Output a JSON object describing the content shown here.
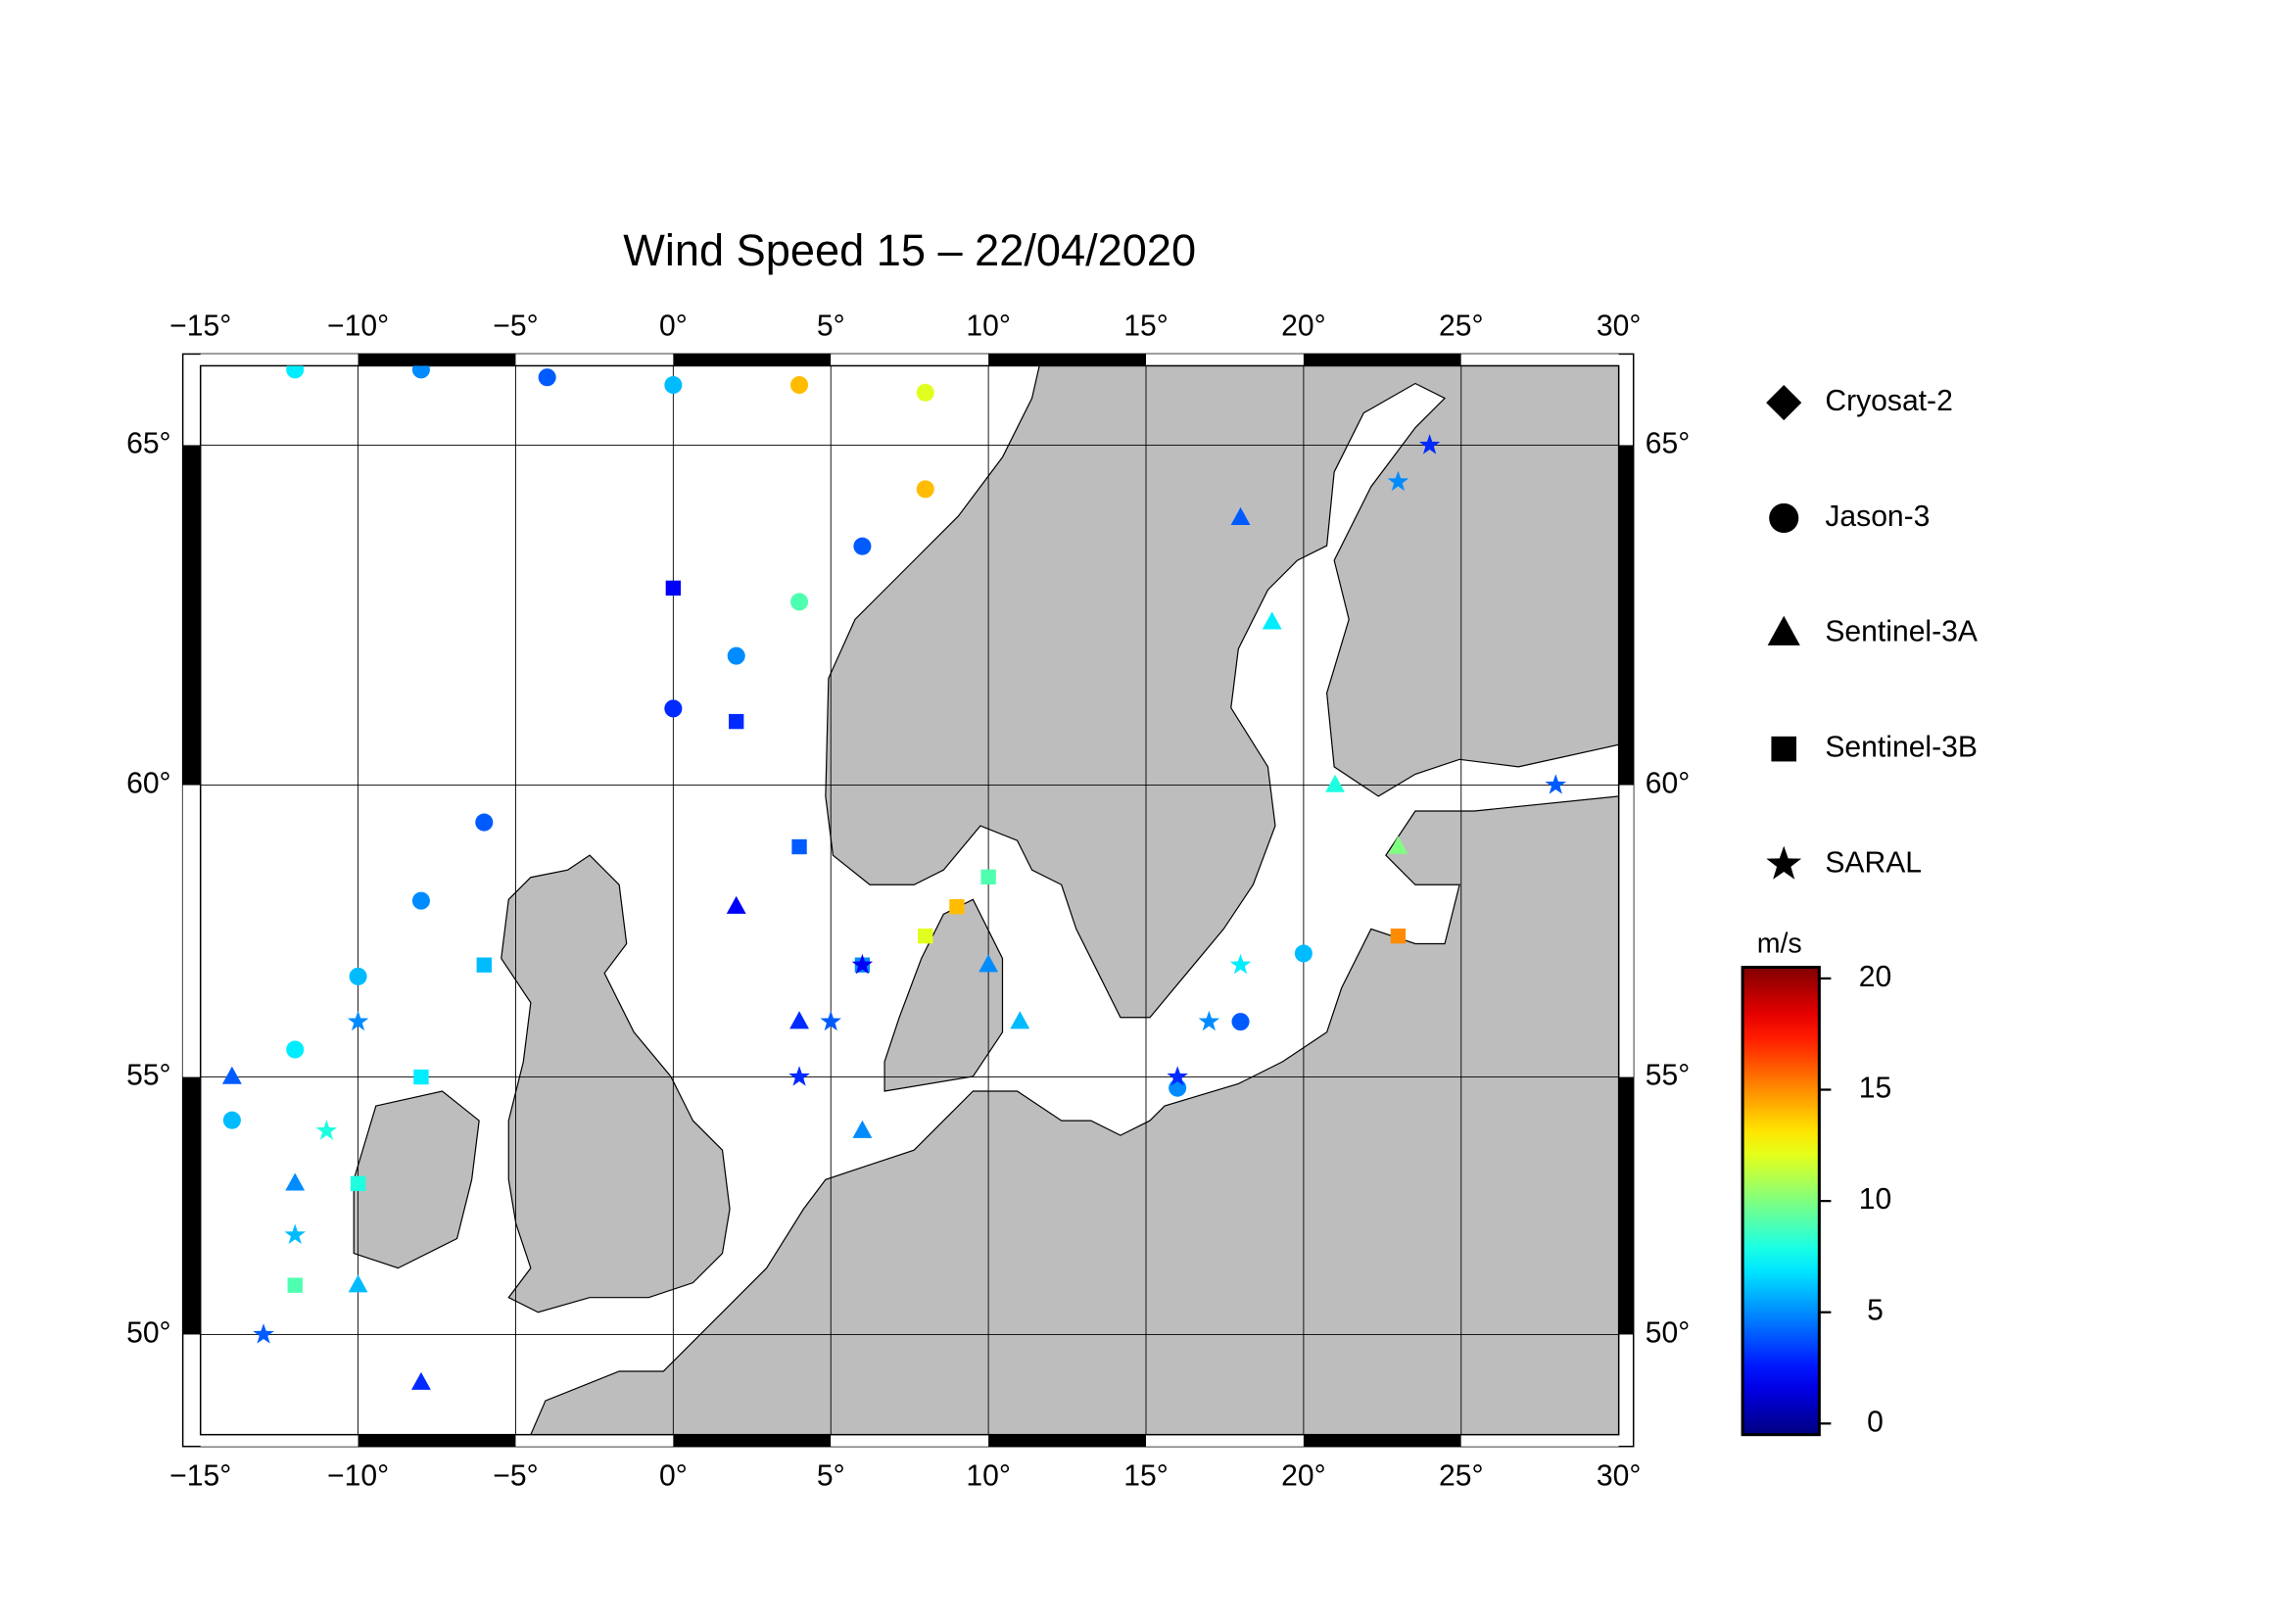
{
  "chart_data": {
    "type": "map",
    "title": "Wind Speed 15 – 22/04/2020",
    "projection": "mercator",
    "xlim": [
      -15,
      30
    ],
    "ylim": [
      47.9,
      66.05
    ],
    "xticks": [
      {
        "value": -15,
        "label": "−15°"
      },
      {
        "value": -10,
        "label": "−10°"
      },
      {
        "value": -5,
        "label": "−5°"
      },
      {
        "value": 0,
        "label": "0°"
      },
      {
        "value": 5,
        "label": "5°"
      },
      {
        "value": 10,
        "label": "10°"
      },
      {
        "value": 15,
        "label": "15°"
      },
      {
        "value": 20,
        "label": "20°"
      },
      {
        "value": 25,
        "label": "25°"
      },
      {
        "value": 30,
        "label": "30°"
      }
    ],
    "yticks": [
      {
        "value": 50,
        "label": "50°"
      },
      {
        "value": 55,
        "label": "55°"
      },
      {
        "value": 60,
        "label": "60°"
      },
      {
        "value": 65,
        "label": "65°"
      }
    ],
    "grid": true,
    "colormap": "jet",
    "colorbar": {
      "label": "m/s",
      "lim": [
        -0.5,
        20.5
      ],
      "ticks": [
        0,
        5,
        10,
        15,
        20
      ]
    },
    "series": [
      {
        "name": "Cryosat-2",
        "marker": "diamond",
        "x": [],
        "y": [],
        "values": []
      },
      {
        "name": "Jason-3",
        "marker": "circle",
        "x": [
          -14,
          -12,
          -10,
          -8,
          -6,
          0,
          2,
          4,
          6,
          8,
          -12,
          -8,
          -4,
          0,
          4,
          8,
          16,
          18,
          20
        ],
        "y": [
          54.2,
          55.5,
          56.8,
          58.1,
          59.4,
          61.2,
          62.0,
          62.8,
          63.6,
          64.4,
          66.0,
          66.0,
          65.9,
          65.8,
          65.8,
          65.7,
          54.8,
          56.0,
          57.2
        ],
        "values": [
          6,
          7,
          6,
          5,
          4,
          3,
          5,
          9,
          4,
          14,
          7,
          5,
          4,
          6,
          14,
          12,
          5,
          4,
          6
        ]
      },
      {
        "name": "Sentinel-3A",
        "marker": "triangle",
        "x": [
          -14,
          -12,
          -10,
          -8,
          2,
          4,
          6,
          10,
          11,
          18,
          19,
          21,
          23
        ],
        "y": [
          55,
          53,
          51,
          49,
          58,
          56,
          54,
          57,
          56,
          64,
          62.5,
          60,
          59
        ],
        "values": [
          4,
          5,
          6,
          3,
          2,
          3,
          5,
          5,
          6,
          4,
          7,
          8,
          10
        ]
      },
      {
        "name": "Sentinel-3B",
        "marker": "square",
        "x": [
          -12,
          -10,
          -8,
          -6,
          0,
          2,
          4,
          6,
          8,
          9,
          10,
          23
        ],
        "y": [
          51,
          53,
          55,
          57,
          63,
          61,
          59,
          57,
          57.5,
          58,
          58.5,
          57.5
        ],
        "values": [
          9,
          8,
          7,
          6,
          2,
          3,
          4,
          5,
          12,
          14,
          9,
          15
        ]
      },
      {
        "name": "SARAL",
        "marker": "star",
        "x": [
          -13,
          -12,
          -11,
          -10,
          4,
          5,
          6,
          16,
          17,
          18,
          23,
          24,
          28
        ],
        "y": [
          50,
          52,
          54,
          56,
          55,
          56,
          57,
          55,
          56,
          57,
          64.5,
          65,
          60
        ],
        "values": [
          4,
          6,
          8,
          5,
          3,
          4,
          2,
          3,
          5,
          7,
          5,
          3,
          4
        ]
      }
    ]
  }
}
